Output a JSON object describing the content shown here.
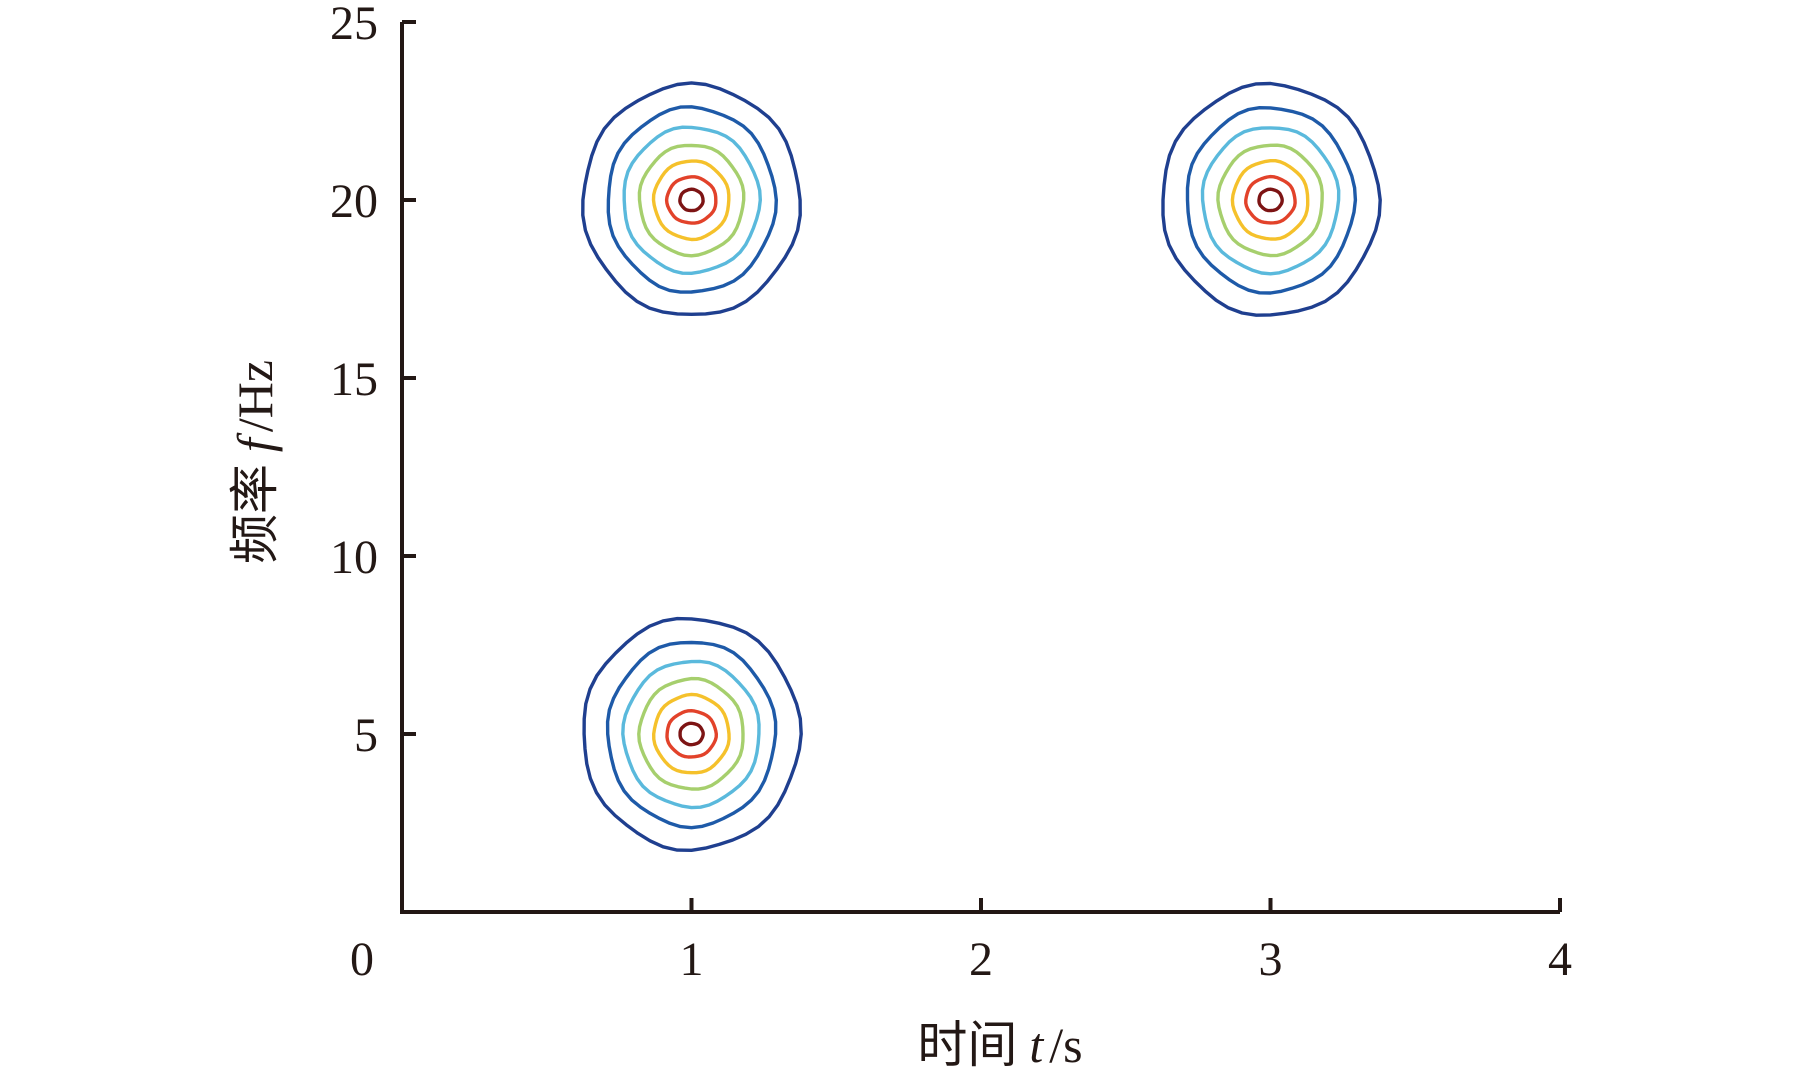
{
  "chart_data": {
    "type": "contour",
    "x": {
      "range": [
        0,
        4
      ],
      "ticks": [
        0,
        1,
        2,
        3,
        4
      ],
      "tick_labels": [
        "0",
        "1",
        "2",
        "3",
        "4"
      ],
      "label_prefix": "时间",
      "label_var": "t",
      "label_unit": "/s"
    },
    "y": {
      "range": [
        0,
        25
      ],
      "ticks": [
        5,
        10,
        15,
        20,
        25
      ],
      "tick_labels": [
        "5",
        "10",
        "15",
        "20",
        "25"
      ],
      "label_prefix": "频率",
      "label_var": "f",
      "label_unit": "/Hz"
    },
    "grid": false,
    "components": [
      {
        "t": 1,
        "f": 20
      },
      {
        "t": 3,
        "f": 20
      },
      {
        "t": 1,
        "f": 5
      }
    ],
    "contour_levels": [
      {
        "rx_t": 0.375,
        "ry_f": 3.25,
        "color": "#1f3f8f"
      },
      {
        "rx_t": 0.29,
        "ry_f": 2.6,
        "color": "#1e5aa8"
      },
      {
        "rx_t": 0.235,
        "ry_f": 2.05,
        "color": "#5ab9dc"
      },
      {
        "rx_t": 0.18,
        "ry_f": 1.55,
        "color": "#a6cf6d"
      },
      {
        "rx_t": 0.13,
        "ry_f": 1.1,
        "color": "#f5c12b"
      },
      {
        "rx_t": 0.085,
        "ry_f": 0.65,
        "color": "#e2422a"
      },
      {
        "rx_t": 0.04,
        "ry_f": 0.3,
        "color": "#7d1414"
      }
    ]
  }
}
